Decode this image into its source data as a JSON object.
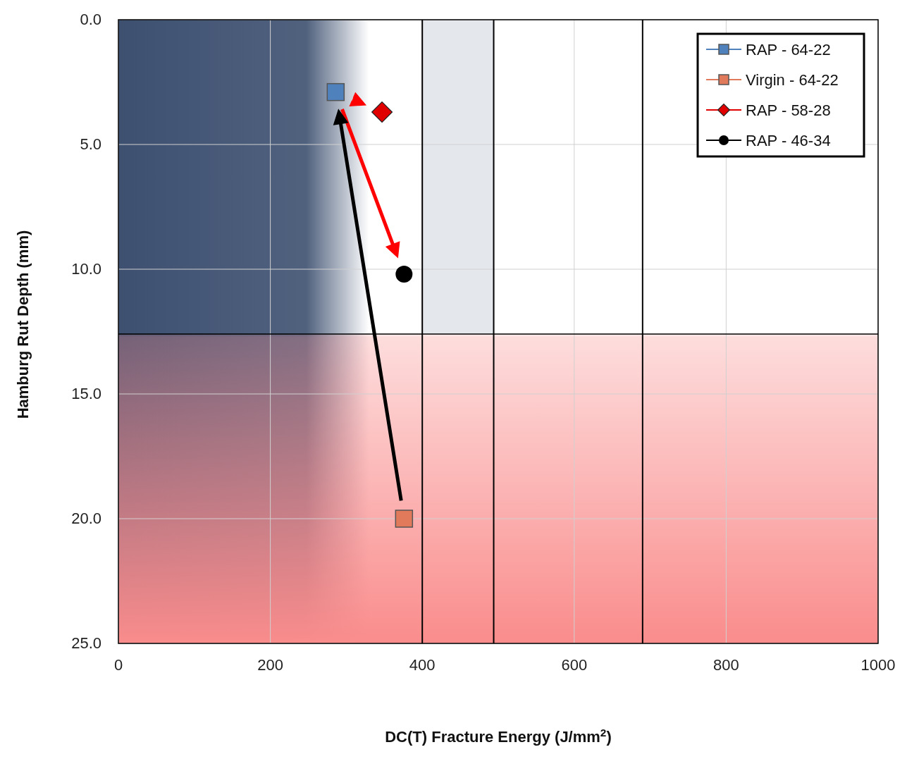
{
  "chart_data": {
    "type": "scatter",
    "xlabel": "DC(T) Fracture Energy (J/mm$^{2}$)",
    "ylabel": "Hamburg Rut Depth (mm)",
    "xlim": [
      0,
      1000
    ],
    "xticks": [
      0,
      200,
      400,
      600,
      800,
      1000
    ],
    "ylim": [
      25,
      0
    ],
    "yticks": [
      {
        "value": 0,
        "label": "0.0"
      },
      {
        "value": 5,
        "label": "5.0"
      },
      {
        "value": 10,
        "label": "10.0"
      },
      {
        "value": 15,
        "label": "15.0"
      },
      {
        "value": 20,
        "label": "20.0"
      },
      {
        "value": 25,
        "label": "25.0"
      }
    ],
    "grid": true,
    "legend": "top right",
    "bands": [
      {
        "axis": "x",
        "from": 0,
        "to": 330,
        "color": "#3d5070"
      },
      {
        "axis": "y",
        "from": 12.6,
        "to": 25,
        "color": "#fa8c8c"
      },
      {
        "axis": "x",
        "from": 400,
        "to": 494,
        "color": "#e4e7ec"
      }
    ],
    "ref_lines": [
      {
        "axis": "x",
        "value": 400
      },
      {
        "axis": "x",
        "value": 494
      },
      {
        "axis": "x",
        "value": 690
      },
      {
        "axis": "y",
        "value": 12.6
      }
    ],
    "series": [
      {
        "name": "RAP - 64-22",
        "color": "#4f81bd",
        "marker": "square",
        "x": [
          286
        ],
        "values": [
          2.9
        ]
      },
      {
        "name": "Virgin - 64-22",
        "color": "#e07a5a",
        "marker": "square",
        "x": [
          376
        ],
        "values": [
          20.0
        ]
      },
      {
        "name": "RAP - 58-28",
        "color": "#e00000",
        "marker": "diamond",
        "x": [
          347
        ],
        "values": [
          3.7
        ]
      },
      {
        "name": "RAP - 46-34",
        "color": "#000000",
        "marker": "circle",
        "x": [
          376
        ],
        "values": [
          10.2
        ]
      }
    ]
  }
}
